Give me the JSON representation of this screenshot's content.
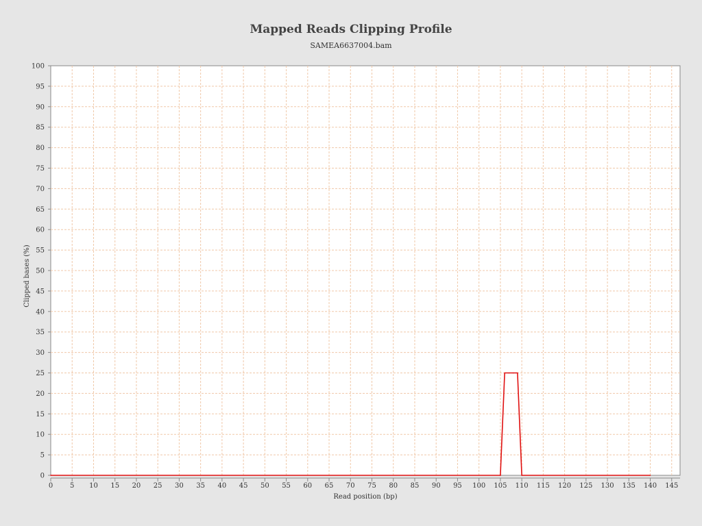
{
  "chart_data": {
    "type": "line",
    "title": "Mapped Reads Clipping Profile",
    "subtitle": "SAMEA6637004.bam",
    "xlabel": "Read position (bp)",
    "ylabel": "Clipped bases (%)",
    "xlim": [
      0,
      147
    ],
    "ylim": [
      0,
      100
    ],
    "x_ticks": [
      "0",
      "5",
      "10",
      "15",
      "20",
      "25",
      "30",
      "35",
      "40",
      "45",
      "50",
      "55",
      "60",
      "65",
      "70",
      "75",
      "80",
      "85",
      "90",
      "95",
      "100",
      "105",
      "110",
      "115",
      "120",
      "125",
      "130",
      "135",
      "140",
      "145"
    ],
    "y_ticks": [
      "0",
      "5",
      "10",
      "15",
      "20",
      "25",
      "30",
      "35",
      "40",
      "45",
      "50",
      "55",
      "60",
      "65",
      "70",
      "75",
      "80",
      "85",
      "90",
      "95",
      "100"
    ],
    "grid": true,
    "series": [
      {
        "color": "#e01010",
        "points": [
          [
            0,
            0
          ],
          [
            105,
            0
          ],
          [
            106,
            25
          ],
          [
            107,
            25
          ],
          [
            108,
            25
          ],
          [
            109,
            25
          ],
          [
            110,
            0
          ],
          [
            140,
            0
          ]
        ]
      }
    ]
  }
}
